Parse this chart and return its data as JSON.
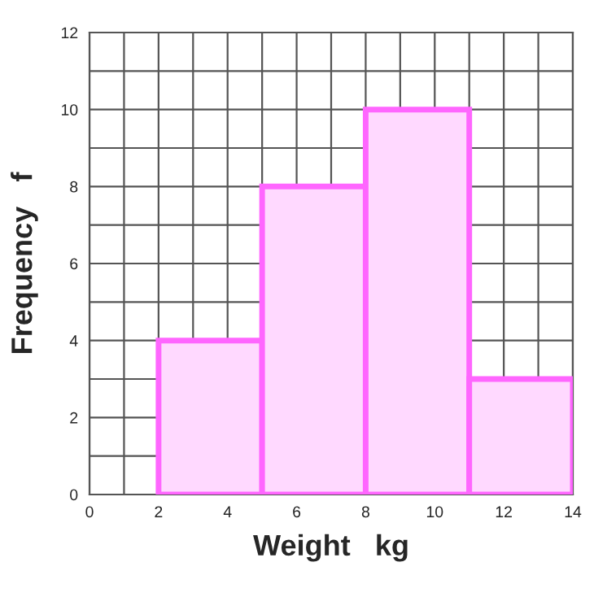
{
  "chart_data": {
    "type": "histogram",
    "xlabel": "Weight   kg",
    "ylabel": "Frequency   f",
    "bins": [
      2,
      5,
      8,
      11,
      14
    ],
    "values": [
      4,
      8,
      10,
      3
    ],
    "color": "#ffd9ff",
    "xlim": [
      0,
      14
    ],
    "ylim": [
      0,
      12
    ],
    "xticks": [
      0,
      2,
      4,
      6,
      8,
      10,
      12,
      14
    ],
    "yticks": [
      0,
      2,
      4,
      6,
      8,
      10,
      12
    ],
    "grid": true
  }
}
